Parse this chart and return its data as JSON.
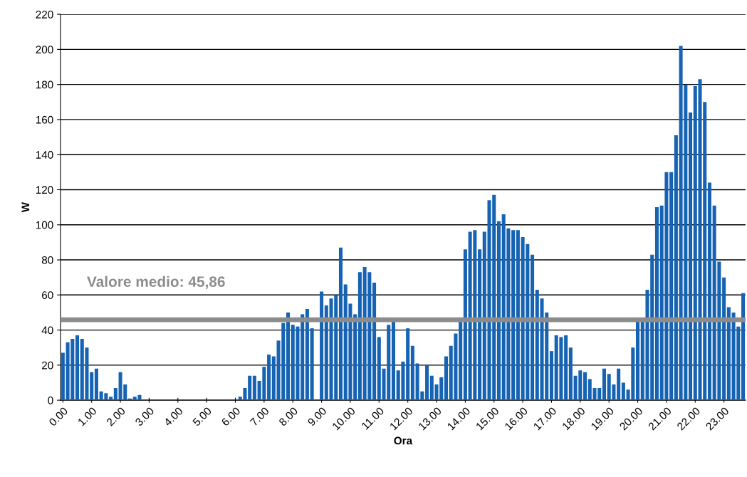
{
  "chart_data": {
    "type": "bar",
    "xlabel": "Ora",
    "ylabel": "W",
    "categories": [
      "0.00",
      null,
      null,
      null,
      null,
      null,
      "1.00",
      null,
      null,
      null,
      null,
      null,
      "2.00",
      null,
      null,
      null,
      null,
      null,
      "3.00",
      null,
      null,
      null,
      null,
      null,
      "4.00",
      null,
      null,
      null,
      null,
      null,
      "5.00",
      null,
      null,
      null,
      null,
      null,
      "6.00",
      null,
      null,
      null,
      null,
      null,
      "7.00",
      null,
      null,
      null,
      null,
      null,
      "8.00",
      null,
      null,
      null,
      null,
      null,
      "9.00",
      null,
      null,
      null,
      null,
      null,
      "10.00",
      null,
      null,
      null,
      null,
      null,
      "11.00",
      null,
      null,
      null,
      null,
      null,
      "12.00",
      null,
      null,
      null,
      null,
      null,
      "13.00",
      null,
      null,
      null,
      null,
      null,
      "14.00",
      null,
      null,
      null,
      null,
      null,
      "15.00",
      null,
      null,
      null,
      null,
      null,
      "16.00",
      null,
      null,
      null,
      null,
      null,
      "17.00",
      null,
      null,
      null,
      null,
      null,
      "18.00",
      null,
      null,
      null,
      null,
      null,
      "19.00",
      null,
      null,
      null,
      null,
      null,
      "20.00",
      null,
      null,
      null,
      null,
      null,
      "21.00",
      null,
      null,
      null,
      null,
      null,
      "22.00",
      null,
      null,
      null,
      null,
      null,
      "23.00",
      null,
      null,
      null,
      null
    ],
    "values": [
      27,
      33,
      35,
      37,
      35,
      30,
      16,
      18,
      5,
      4,
      2,
      7,
      16,
      9,
      1,
      2,
      3,
      0,
      0,
      0,
      0,
      0,
      0,
      0,
      0,
      0,
      0,
      0,
      0,
      0,
      0,
      0,
      0,
      0,
      0,
      0,
      0,
      2,
      7,
      14,
      14,
      11,
      19,
      26,
      25,
      34,
      44,
      50,
      43,
      42,
      49,
      52,
      41,
      null,
      62,
      54,
      58,
      60,
      87,
      66,
      55,
      49,
      73,
      76,
      73,
      67,
      36,
      18,
      43,
      45,
      17,
      22,
      41,
      31,
      21,
      5,
      20,
      14,
      9,
      13,
      25,
      31,
      38,
      45,
      86,
      96,
      97,
      86,
      96,
      114,
      117,
      102,
      106,
      98,
      97,
      97,
      93,
      89,
      83,
      63,
      58,
      50,
      28,
      37,
      36,
      37,
      30,
      14,
      17,
      16,
      12,
      7,
      7,
      18,
      15,
      9,
      18,
      10,
      6,
      30,
      45,
      45,
      63,
      83,
      110,
      111,
      130,
      130,
      151,
      202,
      180,
      164,
      179,
      183,
      170,
      124,
      111,
      79,
      70,
      53,
      50,
      42,
      61
    ],
    "color": "#1763b3",
    "ylim": [
      0,
      220
    ],
    "yticks": [
      0,
      20,
      40,
      60,
      80,
      100,
      120,
      140,
      160,
      180,
      200,
      220
    ],
    "grid": "y",
    "ref_lines": [
      {
        "axis": "y",
        "value": 45.86,
        "label": "Valore medio: 45,86",
        "color": "#8c8c8c"
      }
    ]
  }
}
